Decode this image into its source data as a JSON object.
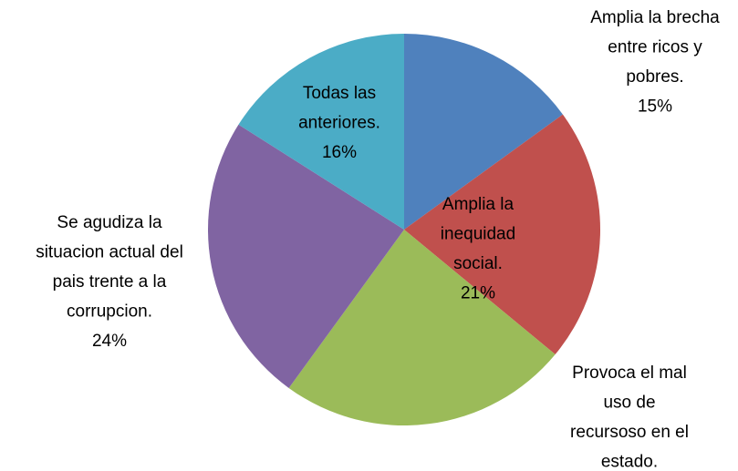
{
  "chart_data": {
    "type": "pie",
    "categories": [
      [
        "Amplia la brecha",
        "entre ricos y",
        "pobres."
      ],
      [
        "Amplia la",
        "inequidad",
        "social."
      ],
      [
        "Provoca el mal",
        "uso de",
        "recursoso en el",
        "estado."
      ],
      [
        "Se agudiza la",
        "situacion actual del",
        "pais trente a la",
        "corrupcion."
      ],
      [
        "Todas las",
        "anteriores."
      ]
    ],
    "values": [
      15,
      21,
      24,
      24,
      16
    ],
    "value_labels": [
      "15%",
      "21%",
      null,
      "24%",
      "16%"
    ],
    "colors": [
      "#4f81bd",
      "#c0504d",
      "#9bbb59",
      "#8064a2",
      "#4bacc6"
    ]
  }
}
